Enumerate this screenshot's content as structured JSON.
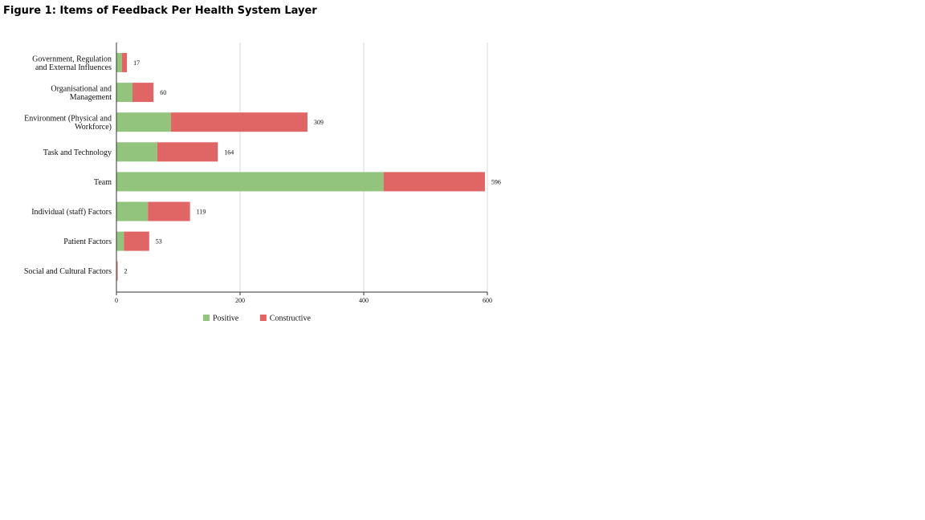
{
  "title": "Figure 1: Items of Feedback Per Health System Layer",
  "chart_data": {
    "type": "bar",
    "orientation": "horizontal",
    "stacked": true,
    "categories": [
      [
        "Government, Regulation",
        "and External Influences"
      ],
      [
        "Organisational and",
        "Management"
      ],
      [
        "Environment (Physical and",
        "Workforce)"
      ],
      [
        "Task and Technology"
      ],
      [
        "Team"
      ],
      [
        "Individual (staff) Factors"
      ],
      [
        "Patient Factors"
      ],
      [
        "Social and Cultural Factors"
      ]
    ],
    "series": [
      {
        "name": "Positive",
        "color": "#93c47d",
        "values": [
          9,
          26,
          88,
          66,
          432,
          51,
          12,
          1
        ]
      },
      {
        "name": "Constructive",
        "color": "#e06666",
        "values": [
          8,
          34,
          221,
          98,
          164,
          68,
          41,
          1
        ]
      }
    ],
    "totals": [
      "17",
      "60",
      "309",
      "164",
      "596",
      "119",
      "53",
      "2"
    ],
    "xlim": [
      0,
      600
    ],
    "xticks": [
      "0",
      "200",
      "400",
      "600"
    ],
    "grid": "vertical",
    "legend_position": "bottom"
  }
}
